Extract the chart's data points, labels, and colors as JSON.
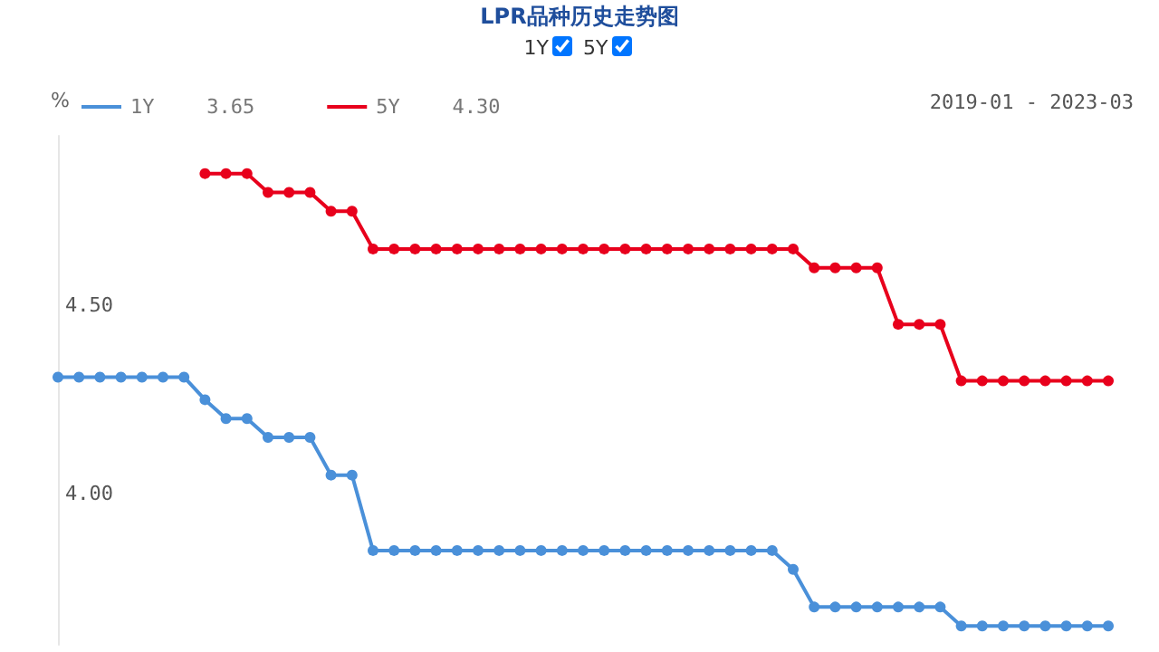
{
  "chart_data": {
    "type": "line",
    "title": "LPR品种历史走势图",
    "ylabel": "%",
    "annotations": [
      "3.65",
      "4.30",
      "2019-01 - 2023-03"
    ],
    "categories": [
      null,
      null,
      null,
      null,
      null,
      null,
      null,
      null,
      null,
      null,
      null,
      null,
      null,
      null,
      null,
      null,
      null,
      null,
      null,
      null,
      null,
      null,
      null,
      null,
      null,
      null,
      null,
      null,
      null,
      null,
      null,
      null,
      null,
      null,
      null,
      null,
      null,
      null,
      null,
      null,
      null,
      null,
      null,
      null,
      null,
      null,
      null,
      null,
      null,
      null,
      null
    ],
    "series": [
      {
        "name": "1Y",
        "color": "#4a90d9",
        "values": [
          4.31,
          4.31,
          4.31,
          4.31,
          4.31,
          4.31,
          4.31,
          4.25,
          4.2,
          4.2,
          4.15,
          4.15,
          4.15,
          4.05,
          4.05,
          3.85,
          3.85,
          3.85,
          3.85,
          3.85,
          3.85,
          3.85,
          3.85,
          3.85,
          3.85,
          3.85,
          3.85,
          3.85,
          3.85,
          3.85,
          3.85,
          3.85,
          3.85,
          3.85,
          3.85,
          3.8,
          3.7,
          3.7,
          3.7,
          3.7,
          3.7,
          3.7,
          3.7,
          3.65,
          3.65,
          3.65,
          3.65,
          3.65,
          3.65,
          3.65,
          3.65
        ]
      },
      {
        "name": "5Y",
        "color": "#e8001c",
        "values": [
          null,
          null,
          null,
          null,
          null,
          null,
          null,
          4.85,
          4.85,
          4.85,
          4.8,
          4.8,
          4.8,
          4.75,
          4.75,
          4.65,
          4.65,
          4.65,
          4.65,
          4.65,
          4.65,
          4.65,
          4.65,
          4.65,
          4.65,
          4.65,
          4.65,
          4.65,
          4.65,
          4.65,
          4.65,
          4.65,
          4.65,
          4.65,
          4.65,
          4.65,
          4.6,
          4.6,
          4.6,
          4.6,
          4.45,
          4.45,
          4.45,
          4.3,
          4.3,
          4.3,
          4.3,
          4.3,
          4.3,
          4.3,
          4.3
        ]
      }
    ],
    "ylim": [
      3.6,
      4.95
    ],
    "yticks": [
      {
        "value": 4.0,
        "label": "4.00"
      },
      {
        "value": 4.5,
        "label": "4.50"
      }
    ],
    "marker": "circle",
    "legend": "top left"
  }
}
